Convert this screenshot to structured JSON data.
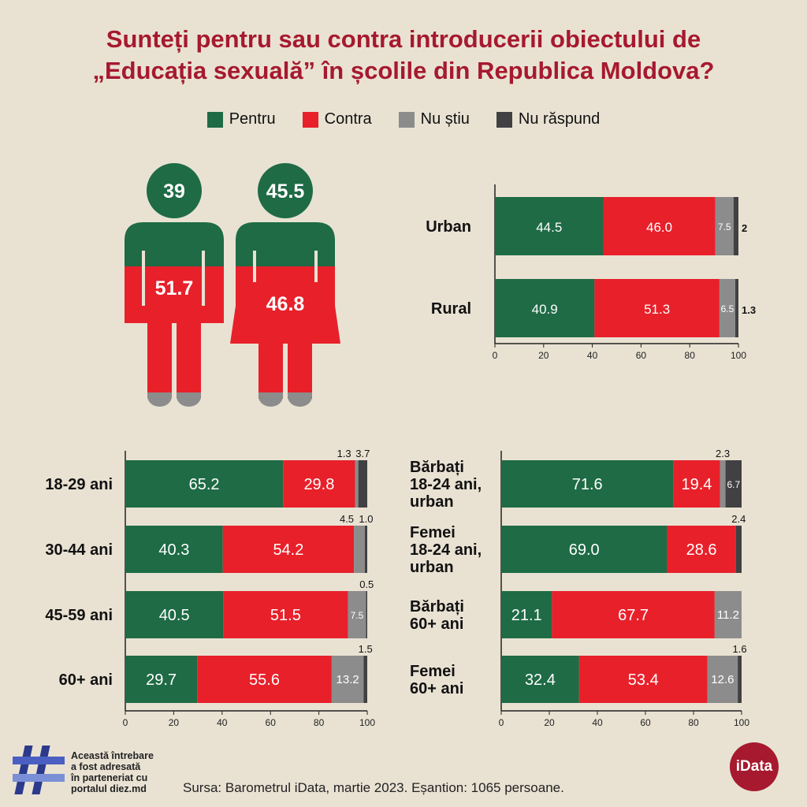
{
  "title_lines": [
    "Sunteți pentru sau contra introducerii obiectului de",
    "„Educația sexuală” în școlile din Republica Moldova?"
  ],
  "legend": [
    {
      "label": "Pentru",
      "color": "#1e6b45"
    },
    {
      "label": "Contra",
      "color": "#e8202a"
    },
    {
      "label": "Nu știu",
      "color": "#8c8c8c"
    },
    {
      "label": "Nu răspund",
      "color": "#414042"
    }
  ],
  "colors": {
    "pentru": "#1e6b45",
    "contra": "#e8202a",
    "nu_stiu": "#8c8c8c",
    "nu_raspund": "#414042",
    "shoe": "#8c8c8c",
    "title": "#a6192e"
  },
  "figures": {
    "male": {
      "pentru": "39",
      "contra": "51.7"
    },
    "female": {
      "pentru": "45.5",
      "contra": "46.8"
    }
  },
  "chart_data": [
    {
      "type": "bar",
      "stacked": true,
      "orientation": "horizontal",
      "categories": [
        "Urban",
        "Rural"
      ],
      "series": [
        {
          "name": "Pentru",
          "values": [
            44.5,
            40.9
          ]
        },
        {
          "name": "Contra",
          "values": [
            46.0,
            51.3
          ]
        },
        {
          "name": "Nu știu",
          "values": [
            7.5,
            6.5
          ]
        },
        {
          "name": "Nu răspund",
          "values": [
            2,
            1.3
          ]
        }
      ],
      "labels": [
        [
          "44.5",
          "46.0",
          "7.5",
          "2"
        ],
        [
          "40.9",
          "51.3",
          "6.5",
          "1.3"
        ]
      ],
      "xlim": [
        0,
        100
      ],
      "xticks": [
        "0",
        "20",
        "40",
        "60",
        "80",
        "100"
      ]
    },
    {
      "type": "bar",
      "stacked": true,
      "orientation": "horizontal",
      "categories": [
        "18-29 ani",
        "30-44 ani",
        "45-59 ani",
        "60+ ani"
      ],
      "series": [
        {
          "name": "Pentru",
          "values": [
            65.2,
            40.3,
            40.5,
            29.7
          ]
        },
        {
          "name": "Contra",
          "values": [
            29.8,
            54.2,
            51.5,
            55.6
          ]
        },
        {
          "name": "Nu știu",
          "values": [
            1.3,
            4.5,
            7.5,
            13.2
          ]
        },
        {
          "name": "Nu răspund",
          "values": [
            3.7,
            1.0,
            0.5,
            1.5
          ]
        }
      ],
      "labels": [
        [
          "65.2",
          "29.8",
          "1.3",
          "3.7"
        ],
        [
          "40.3",
          "54.2",
          "4.5",
          "1.0"
        ],
        [
          "40.5",
          "51.5",
          "7.5",
          "0.5"
        ],
        [
          "29.7",
          "55.6",
          "13.2",
          "1.5"
        ]
      ],
      "xlim": [
        0,
        100
      ],
      "xticks": [
        "0",
        "20",
        "40",
        "60",
        "80",
        "100"
      ]
    },
    {
      "type": "bar",
      "stacked": true,
      "orientation": "horizontal",
      "categories": [
        "Bărbați 18-24 ani, urban",
        "Femei 18-24 ani, urban",
        "Bărbați 60+ ani",
        "Femei 60+ ani"
      ],
      "category_lines": [
        [
          "Bărbați",
          "18-24 ani,",
          "urban"
        ],
        [
          "Femei",
          "18-24 ani,",
          "urban"
        ],
        [
          "Bărbați",
          "60+ ani"
        ],
        [
          "Femei",
          "60+ ani"
        ]
      ],
      "series": [
        {
          "name": "Pentru",
          "values": [
            71.6,
            69.0,
            21.1,
            32.4
          ]
        },
        {
          "name": "Contra",
          "values": [
            19.4,
            28.6,
            67.7,
            53.4
          ]
        },
        {
          "name": "Nu știu",
          "values": [
            2.3,
            0,
            11.2,
            12.6
          ]
        },
        {
          "name": "Nu răspund",
          "values": [
            6.7,
            2.4,
            0,
            1.6
          ]
        }
      ],
      "labels": [
        [
          "71.6",
          "19.4",
          "2.3",
          "6.7"
        ],
        [
          "69.0",
          "28.6",
          "",
          "2.4"
        ],
        [
          "21.1",
          "67.7",
          "11.2",
          ""
        ],
        [
          "32.4",
          "53.4",
          "12.6",
          "1.6"
        ]
      ],
      "xlim": [
        0,
        100
      ],
      "xticks": [
        "0",
        "20",
        "40",
        "60",
        "80",
        "100"
      ]
    }
  ],
  "source": "Sursa: Barometrul iData, martie 2023. Eșantion: 1065 persoane.",
  "partner_note_lines": [
    "Această întrebare",
    "a fost adresată",
    "în parteneriat cu",
    "portalul diez.md"
  ],
  "partner_logo_icon": "hashtag-logo",
  "brand_logo": "iData"
}
